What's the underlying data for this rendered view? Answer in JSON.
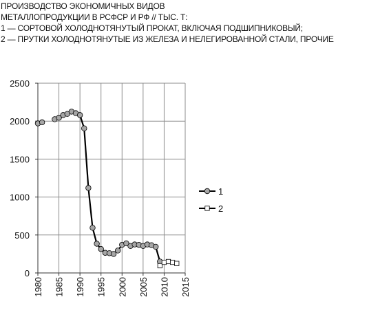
{
  "chart_data": {
    "type": "line",
    "title_lines": [
      "ПРОИЗВОДСТВО ЭКОНОМИЧНЫХ ВИДОВ",
      "МЕТАЛЛОПРОДУКЦИИ В РСФСР И РФ  // ТЫС. Т:",
      "1 — СОРТОВОЙ ХОЛОДНОТЯНУТЫЙ ПРОКАТ, ВКЛЮЧАЯ ПОДШИПНИКОВЫЙ;",
      "2 — ПРУТКИ ХОЛОДНОТЯНУТЫЕ ИЗ ЖЕЛЕЗА И НЕЛЕГИРОВАННОЙ СТАЛИ, ПРОЧИЕ"
    ],
    "xlabel": "",
    "ylabel": "",
    "xlim": [
      1980,
      2015
    ],
    "ylim": [
      0,
      2500
    ],
    "x_ticks": [
      1980,
      1985,
      1990,
      1995,
      2000,
      2005,
      2010,
      2015
    ],
    "y_ticks": [
      0,
      500,
      1000,
      1500,
      2000,
      2500
    ],
    "grid": true,
    "legend_position": "right",
    "series": [
      {
        "name": "1",
        "marker": "circle",
        "marker_fill": "#a6a6a6",
        "line_color": "#000000",
        "points": [
          {
            "x": 1980,
            "y": 1970
          },
          {
            "x": 1981,
            "y": 1985
          },
          {
            "x": 1984,
            "y": 2025
          },
          {
            "x": 1985,
            "y": 2045
          },
          {
            "x": 1986,
            "y": 2080
          },
          {
            "x": 1987,
            "y": 2095
          },
          {
            "x": 1988,
            "y": 2125
          },
          {
            "x": 1989,
            "y": 2105
          },
          {
            "x": 1990,
            "y": 2080
          },
          {
            "x": 1991,
            "y": 1905
          },
          {
            "x": 1992,
            "y": 1120
          },
          {
            "x": 1993,
            "y": 595
          },
          {
            "x": 1994,
            "y": 385
          },
          {
            "x": 1995,
            "y": 315
          },
          {
            "x": 1996,
            "y": 265
          },
          {
            "x": 1997,
            "y": 260
          },
          {
            "x": 1998,
            "y": 250
          },
          {
            "x": 1999,
            "y": 295
          },
          {
            "x": 2000,
            "y": 370
          },
          {
            "x": 2001,
            "y": 390
          },
          {
            "x": 2002,
            "y": 355
          },
          {
            "x": 2003,
            "y": 375
          },
          {
            "x": 2004,
            "y": 370
          },
          {
            "x": 2005,
            "y": 355
          },
          {
            "x": 2006,
            "y": 375
          },
          {
            "x": 2007,
            "y": 365
          },
          {
            "x": 2008,
            "y": 345
          },
          {
            "x": 2009,
            "y": 150
          }
        ],
        "gaps_after_x": [
          1981
        ]
      },
      {
        "name": "2",
        "marker": "square",
        "marker_fill": "#ffffff",
        "line_color": "#000000",
        "points": [
          {
            "x": 2009,
            "y": 95
          },
          {
            "x": 2010,
            "y": 140
          },
          {
            "x": 2011,
            "y": 150
          },
          {
            "x": 2012,
            "y": 140
          },
          {
            "x": 2013,
            "y": 125
          }
        ],
        "gaps_after_x": []
      }
    ]
  }
}
